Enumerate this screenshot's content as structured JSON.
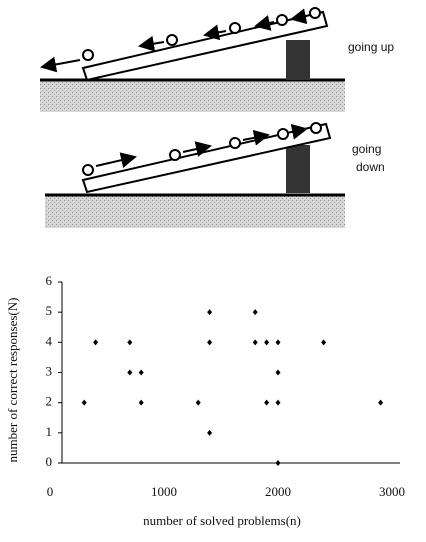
{
  "diagram": {
    "top_label": "going up",
    "bottom_label": [
      "going",
      "down"
    ]
  },
  "chart_data": {
    "type": "scatter",
    "x_label": "number of solved problems(n)",
    "y_label": "number of correct responses(N)",
    "series": [
      {
        "color": "#000000",
        "x": [
          300,
          400,
          700,
          700,
          800,
          800,
          1300,
          1400,
          1400,
          1400,
          1800,
          1800,
          1900,
          1900,
          2000,
          2000,
          2000,
          2000,
          2400,
          2900
        ],
        "values": [
          2,
          4,
          4,
          3,
          3,
          2,
          2,
          5,
          4,
          1,
          5,
          4,
          4,
          2,
          4,
          3,
          2,
          0,
          4,
          2
        ]
      }
    ],
    "xlim": [
      0,
      3000
    ],
    "xticks": [
      0,
      1000,
      2000,
      3000
    ],
    "ylim": [
      0,
      6
    ],
    "yticks": [
      0,
      1,
      2,
      3,
      4,
      5,
      6
    ],
    "grid": false
  }
}
